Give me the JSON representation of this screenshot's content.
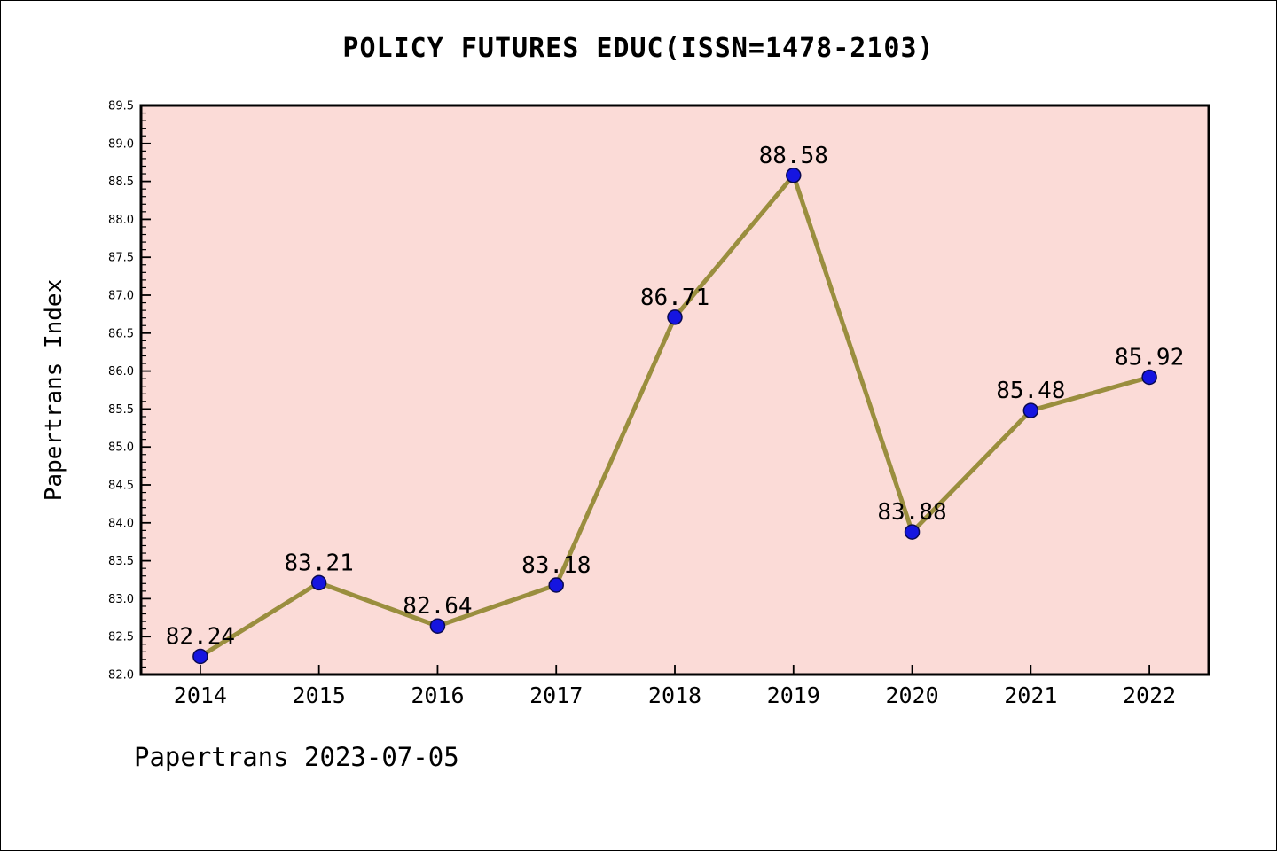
{
  "chart_data": {
    "type": "line",
    "title": "POLICY FUTURES EDUC(ISSN=1478-2103)",
    "ylabel": "Papertrans Index",
    "xlabel": "",
    "footer": "Papertrans 2023-07-05",
    "categories": [
      2014,
      2015,
      2016,
      2017,
      2018,
      2019,
      2020,
      2021,
      2022
    ],
    "values": [
      82.24,
      83.21,
      82.64,
      83.18,
      86.71,
      88.58,
      83.88,
      85.48,
      85.92
    ],
    "point_labels": [
      "82.24",
      "83.21",
      "82.64",
      "83.18",
      "86.71",
      "88.58",
      "83.88",
      "85.48",
      "85.92"
    ],
    "ylim": [
      82.0,
      89.5
    ],
    "xlim": [
      2013.5,
      2022.5
    ],
    "y_major_step": 0.5,
    "y_minor_step": 0.1,
    "grid": "off",
    "legend": "none",
    "tick_direction": "in",
    "colors": {
      "plot_background": "#fbdbd7",
      "line": "#9a8e3e",
      "marker_fill": "#1515e0",
      "marker_edge": "#0a0a50",
      "axis": "#000000",
      "text": "#000000"
    }
  }
}
